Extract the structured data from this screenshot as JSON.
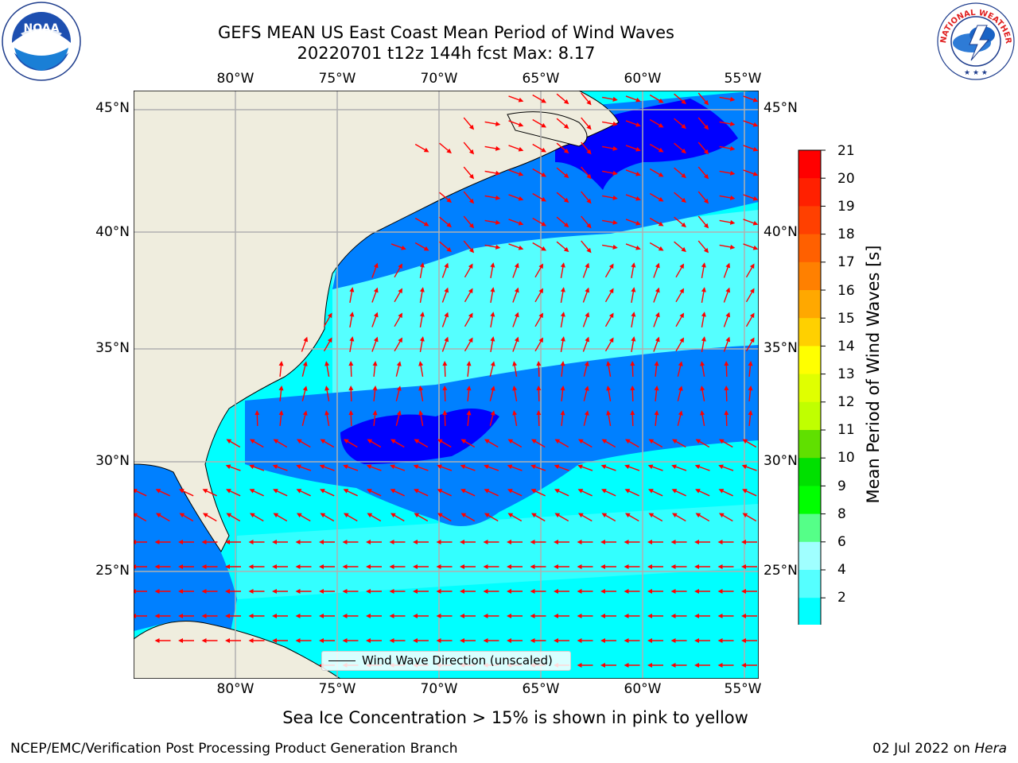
{
  "header": {
    "title_line1": "GEFS MEAN US East Coast Mean Period of Wind Waves",
    "title_line2": "20220701 t12z 144h fcst   Max: 8.17"
  },
  "logos": {
    "left": {
      "icon": "noaa-logo-icon",
      "text": "NOAA"
    },
    "right": {
      "icon": "nws-logo-icon",
      "text": "NATIONAL WEATHER SERVICE"
    }
  },
  "map": {
    "lon_labels": [
      "80°W",
      "75°W",
      "70°W",
      "65°W",
      "60°W",
      "55°W"
    ],
    "lat_labels": [
      "45°N",
      "40°N",
      "35°N",
      "30°N",
      "25°N"
    ],
    "colors": {
      "land": "#efedde",
      "ocean_light": "#00ffff",
      "ocean_mid": "#55ffff",
      "ocean_blue": "#0080ff",
      "ocean_dark": "#0000ff",
      "grid": "#b0b0b0",
      "arrow": "#ff0000"
    },
    "legend_label": "Wind Wave Direction (unscaled)"
  },
  "colorbar": {
    "title": "Mean Period of Wind Waves [s]",
    "tick_labels": [
      "21",
      "20",
      "19",
      "18",
      "17",
      "16",
      "15",
      "14",
      "13",
      "12",
      "11",
      "10",
      "9",
      "8",
      "6",
      "4",
      "2"
    ],
    "colors": [
      "#ff0000",
      "#ff2000",
      "#ff4000",
      "#ff6000",
      "#ff8000",
      "#ffa800",
      "#ffd000",
      "#ffff00",
      "#e0ff00",
      "#c0ff00",
      "#60e000",
      "#00e000",
      "#00ff00",
      "#55ff88",
      "#a0ffff",
      "#55ffff",
      "#00ffff",
      "#0080ff",
      "#0000ff"
    ]
  },
  "subtitle": "Sea Ice Concentration > 15% is shown in pink to yellow",
  "footer": {
    "left": "NCEP/EMC/Verification Post Processing Product Generation Branch",
    "right_prefix": "02 Jul 2022 on ",
    "right_machine": "Hera"
  }
}
